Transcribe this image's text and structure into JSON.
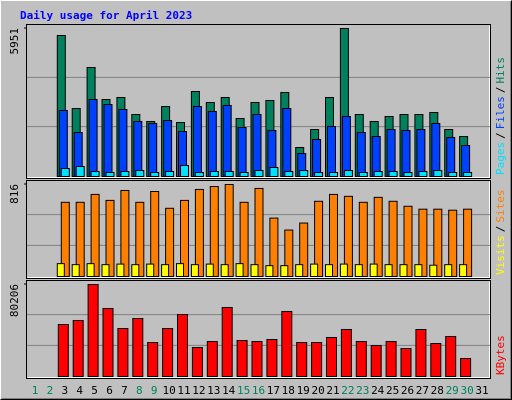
{
  "chart_data": [
    {
      "type": "bar",
      "title": "Daily usage for April 2023",
      "title_color": "#0000ff",
      "categories": [
        "1",
        "2",
        "3",
        "4",
        "5",
        "6",
        "7",
        "8",
        "9",
        "10",
        "11",
        "12",
        "13",
        "14",
        "15",
        "16",
        "17",
        "18",
        "19",
        "20",
        "21",
        "22",
        "23",
        "24",
        "25",
        "26",
        "27",
        "28",
        "29",
        "30",
        "31"
      ],
      "category_colors": [
        "#00805c",
        "#00805c",
        "#000000",
        "#000000",
        "#000000",
        "#000000",
        "#000000",
        "#00805c",
        "#00805c",
        "#000000",
        "#000000",
        "#000000",
        "#000000",
        "#000000",
        "#00805c",
        "#00805c",
        "#000000",
        "#000000",
        "#000000",
        "#000000",
        "#000000",
        "#00805c",
        "#00805c",
        "#000000",
        "#000000",
        "#000000",
        "#000000",
        "#000000",
        "#00805c",
        "#00805c",
        "#000000"
      ],
      "legend_separator": "/",
      "ylim": [
        0,
        5951
      ],
      "yticks": [
        5951
      ],
      "series": [
        {
          "name": "Hits",
          "color": "#00805c",
          "values": [
            null,
            null,
            5670,
            2734,
            4383,
            3096,
            3177,
            2493,
            2212,
            2815,
            2171,
            3418,
            2976,
            3177,
            2332,
            2976,
            3056,
            3378,
            1166,
            1890,
            3177,
            5951,
            2493,
            2212,
            2413,
            2493,
            2493,
            2573,
            1890,
            1608,
            null
          ]
        },
        {
          "name": "Files",
          "color": "#0040ff",
          "values": [
            null,
            null,
            2654,
            1769,
            3096,
            2895,
            2694,
            2212,
            2131,
            2252,
            1809,
            2815,
            2614,
            2855,
            1970,
            2493,
            1850,
            2734,
            925,
            1488,
            2011,
            2413,
            1769,
            1608,
            1890,
            1850,
            1890,
            2131,
            1568,
            1246,
            null
          ]
        },
        {
          "name": "Pages",
          "color": "#00e0ff",
          "values": [
            null,
            null,
            322,
            402,
            201,
            161,
            201,
            241,
            161,
            201,
            442,
            161,
            201,
            201,
            161,
            241,
            362,
            201,
            241,
            161,
            161,
            241,
            161,
            201,
            201,
            161,
            201,
            241,
            161,
            161,
            null
          ]
        }
      ]
    },
    {
      "type": "bar",
      "ylim": [
        0,
        816
      ],
      "yticks": [
        816
      ],
      "series": [
        {
          "name": "Sites",
          "color": "#ff8000",
          "values": [
            null,
            null,
            658,
            658,
            728,
            675,
            763,
            658,
            754,
            605,
            675,
            772,
            798,
            816,
            658,
            781,
            518,
            412,
            474,
            667,
            728,
            711,
            658,
            702,
            667,
            623,
            597,
            597,
            588,
            597,
            null
          ]
        },
        {
          "name": "Visits",
          "color": "#ffff00",
          "values": [
            null,
            null,
            114,
            105,
            114,
            105,
            110,
            105,
            110,
            105,
            114,
            105,
            110,
            105,
            114,
            105,
            96,
            96,
            105,
            110,
            105,
            110,
            105,
            110,
            105,
            105,
            105,
            100,
            105,
            105,
            null
          ]
        }
      ]
    },
    {
      "type": "bar",
      "ylim": [
        0,
        80206
      ],
      "yticks": [
        80206
      ],
      "series": [
        {
          "name": "KBytes",
          "color": "#ff0000",
          "values": [
            null,
            null,
            45340,
            48830,
            80206,
            59290,
            41850,
            50570,
            29640,
            41850,
            54060,
            25290,
            30520,
            60170,
            31390,
            30520,
            32260,
            56680,
            29640,
            29640,
            34010,
            40980,
            30520,
            27030,
            30520,
            24410,
            40980,
            28770,
            34880,
            15700,
            null
          ]
        }
      ]
    }
  ]
}
